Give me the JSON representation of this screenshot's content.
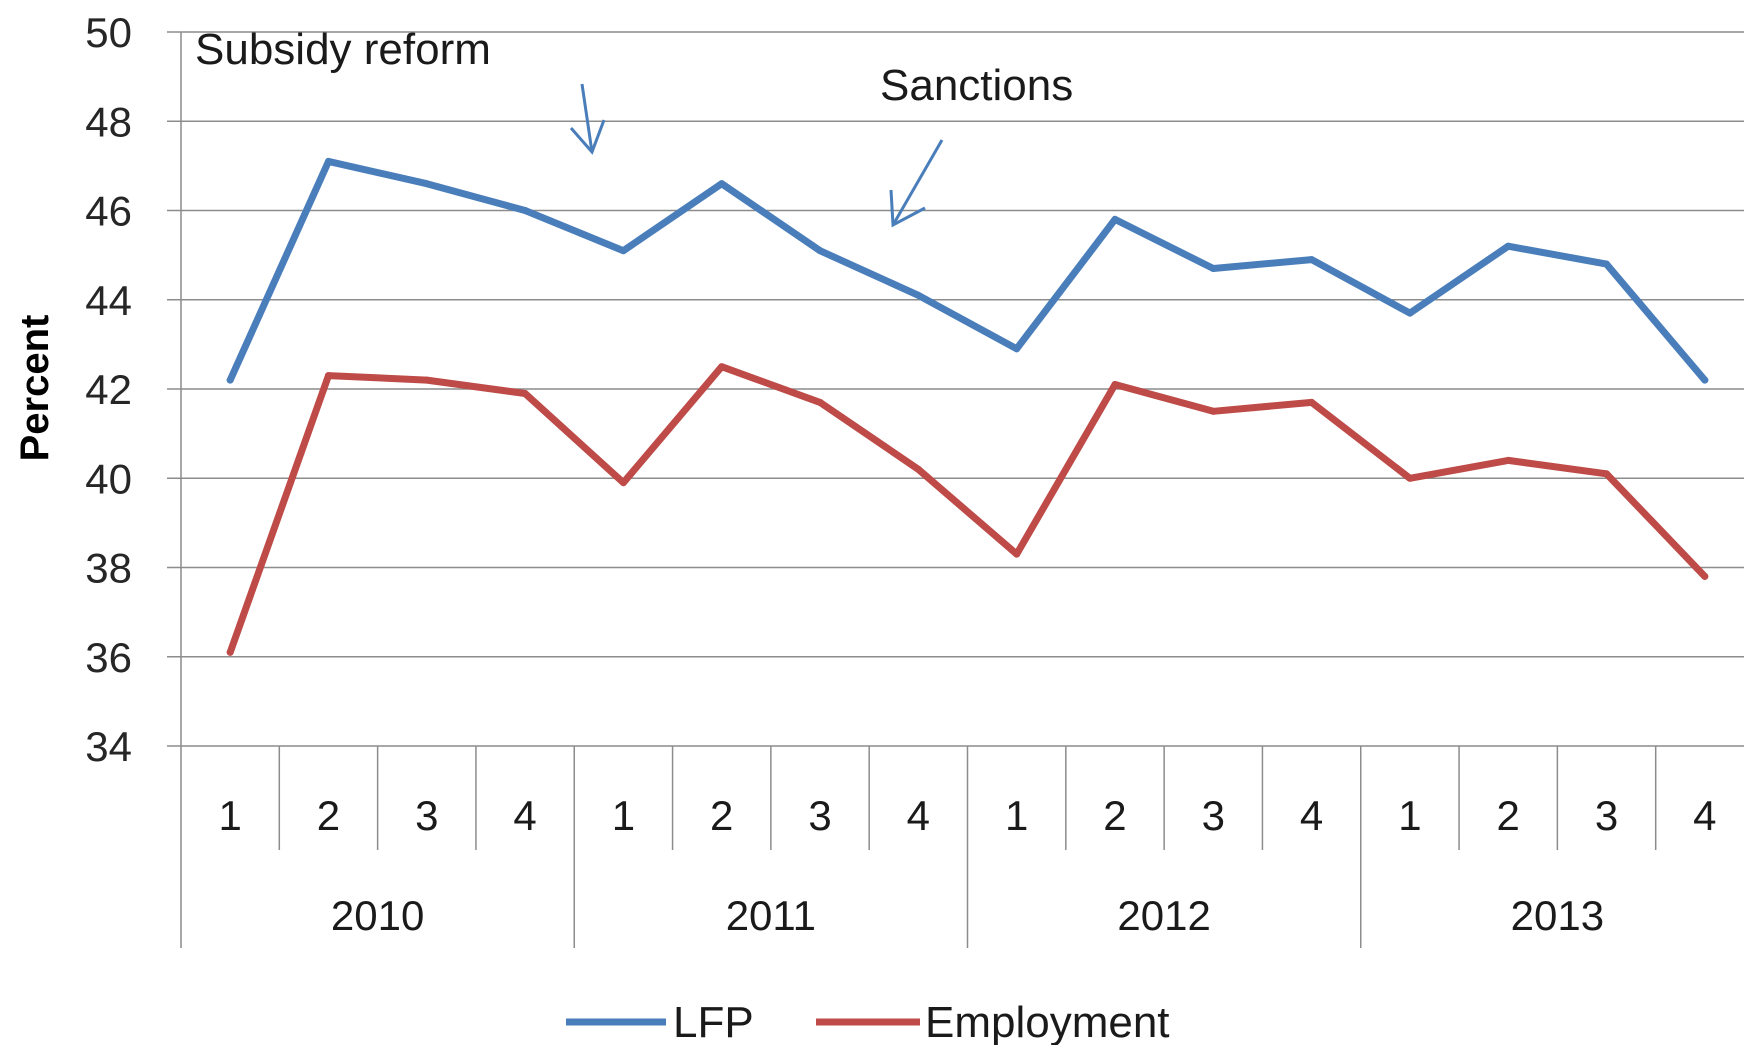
{
  "chart_data": {
    "type": "line",
    "title": "",
    "ylabel": "Percent",
    "ylim": [
      34,
      50
    ],
    "yticks": [
      34,
      36,
      38,
      40,
      42,
      44,
      46,
      48,
      50
    ],
    "grid": "horizontal",
    "legend_position": "bottom",
    "x_quarters": [
      "1",
      "2",
      "3",
      "4",
      "1",
      "2",
      "3",
      "4",
      "1",
      "2",
      "3",
      "4",
      "1",
      "2",
      "3",
      "4"
    ],
    "x_years": [
      "2010",
      "2011",
      "2012",
      "2013"
    ],
    "series": [
      {
        "name": "LFP",
        "color": "#4a7ebb",
        "values": [
          42.2,
          47.1,
          46.6,
          46.0,
          45.1,
          46.6,
          45.1,
          44.1,
          42.9,
          45.8,
          44.7,
          44.9,
          43.7,
          45.2,
          44.8,
          42.2
        ]
      },
      {
        "name": "Employment",
        "color": "#be4b48",
        "values": [
          36.1,
          42.3,
          42.2,
          41.9,
          39.9,
          42.5,
          41.7,
          40.2,
          38.3,
          42.1,
          41.5,
          41.7,
          40.0,
          40.4,
          40.1,
          37.8
        ]
      }
    ],
    "annotations": [
      {
        "text": "Subsidy reform",
        "arrow_color": "#4a7ebb"
      },
      {
        "text": "Sanctions",
        "arrow_color": "#4a7ebb"
      }
    ]
  }
}
